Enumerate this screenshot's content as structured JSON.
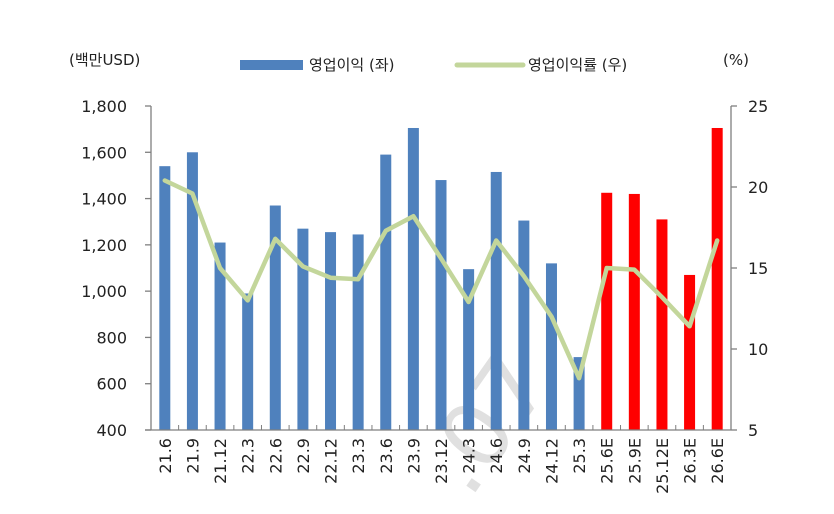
{
  "chart_data": {
    "type": "bar",
    "title": "",
    "left_unit_label": "(백만USD)",
    "right_unit_label": "(%)",
    "xlabel": "",
    "ylabel": "영업이익 (백만USD)",
    "y2label": "영업이익률 (%)",
    "ylim": [
      400,
      1800
    ],
    "y_ticks": [
      400,
      600,
      800,
      1000,
      1200,
      1400,
      1600,
      1800
    ],
    "y_tick_labels": [
      "400",
      "600",
      "800",
      "1,000",
      "1,200",
      "1,400",
      "1,600",
      "1,800"
    ],
    "y2lim": [
      5,
      25
    ],
    "y2_ticks": [
      5,
      10,
      15,
      20,
      25
    ],
    "y2_tick_labels": [
      "5",
      "10",
      "15",
      "20",
      "25"
    ],
    "grid": false,
    "legend_position": "top",
    "categories": [
      "21.6",
      "21.9",
      "21.12",
      "22.3",
      "22.6",
      "22.9",
      "22.12",
      "23.3",
      "23.6",
      "23.9",
      "23.12",
      "24.3",
      "24.6",
      "24.9",
      "24.12",
      "25.3",
      "25.6E",
      "25.9E",
      "25.12E",
      "26.3E",
      "26.6E"
    ],
    "series": [
      {
        "name": "영업이익 (좌)",
        "type": "bar",
        "axis": "left",
        "color": "#4f81bd",
        "estimate_color": "#ff0000",
        "values": [
          1540,
          1600,
          1210,
          990,
          1370,
          1270,
          1255,
          1245,
          1590,
          1705,
          1480,
          1095,
          1515,
          1305,
          1120,
          715,
          1425,
          1420,
          1310,
          1070,
          1705
        ]
      },
      {
        "name": "영업이익률 (우)",
        "type": "line",
        "axis": "right",
        "color": "#c3d69b",
        "values": [
          20.4,
          19.6,
          15.0,
          13.0,
          16.8,
          15.1,
          14.4,
          14.3,
          17.3,
          18.2,
          15.6,
          12.9,
          16.7,
          14.5,
          12.0,
          8.2,
          15.0,
          14.9,
          13.2,
          11.4,
          16.7
        ]
      }
    ],
    "estimate_start_index": 16,
    "watermark": ".07"
  },
  "legend": {
    "bar_label": "영업이익 (좌)",
    "line_label": "영업이익률 (우)"
  }
}
